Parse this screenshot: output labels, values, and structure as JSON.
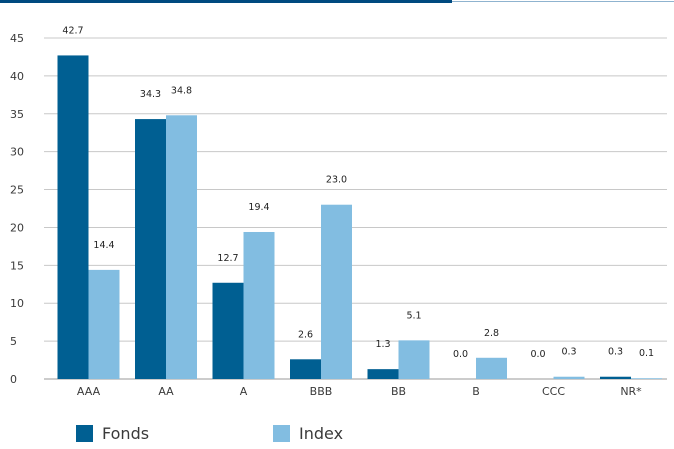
{
  "colors": {
    "fonds": "#005f92",
    "index": "#82bde1",
    "grid": "#c8c8c8",
    "axis": "#9a9a9a"
  },
  "legend": {
    "fonds_label": "Fonds",
    "index_label": "Index"
  },
  "chart_data": {
    "type": "bar",
    "categories": [
      "AAA",
      "AA",
      "A",
      "BBB",
      "BB",
      "B",
      "CCC",
      "NR*"
    ],
    "series": [
      {
        "name": "Fonds",
        "values": [
          42.7,
          34.3,
          12.7,
          2.6,
          1.3,
          0.0,
          0.0,
          0.3
        ],
        "labels": [
          "42.7",
          "34.3",
          "12.7",
          "2.6",
          "1.3",
          "0.0",
          "0.0",
          "0.3"
        ]
      },
      {
        "name": "Index",
        "values": [
          14.4,
          34.8,
          19.4,
          23.0,
          5.1,
          2.8,
          0.3,
          0.1
        ],
        "labels": [
          "14.4",
          "34.8",
          "19.4",
          "23.0",
          "5.1",
          "2.8",
          "0.3",
          "0.1"
        ]
      }
    ],
    "ylim": [
      0,
      45
    ],
    "yticks": [
      0,
      5,
      10,
      15,
      20,
      25,
      30,
      35,
      40,
      45
    ],
    "grid": true,
    "legend_position": "bottom-left"
  }
}
